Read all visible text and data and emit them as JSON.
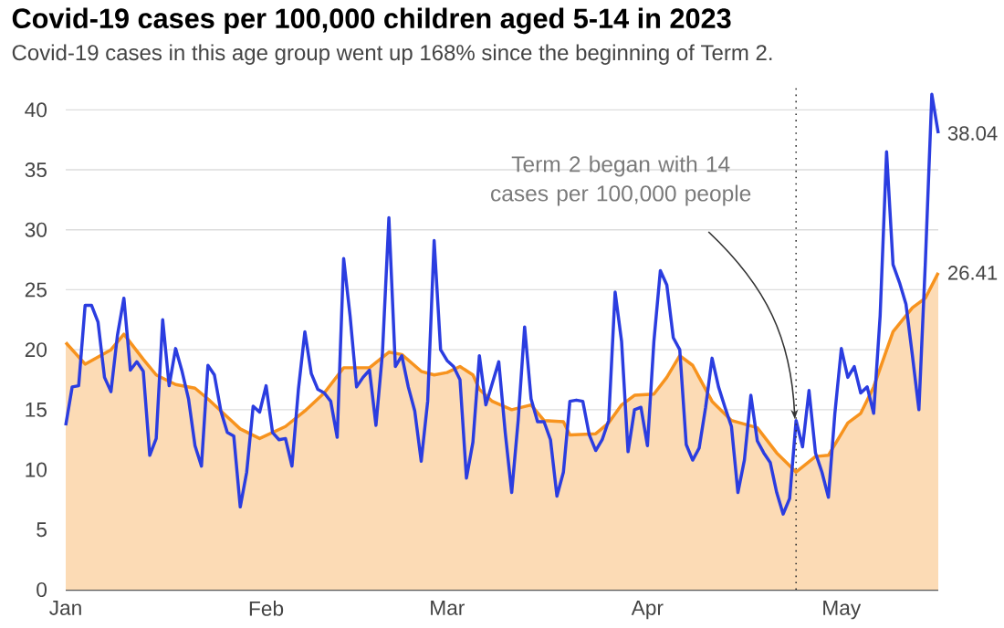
{
  "chart_data": {
    "type": "line",
    "title": "Covid-19 cases per 100,000 children aged 5-14 in 2023",
    "subtitle": "Covid-19 cases in this age group went up 168% since the beginning of Term 2.",
    "x": [
      "2023-01-01",
      "2023-01-02",
      "2023-01-03",
      "2023-01-04",
      "2023-01-05",
      "2023-01-06",
      "2023-01-07",
      "2023-01-08",
      "2023-01-09",
      "2023-01-10",
      "2023-01-11",
      "2023-01-12",
      "2023-01-13",
      "2023-01-14",
      "2023-01-15",
      "2023-01-16",
      "2023-01-17",
      "2023-01-18",
      "2023-01-19",
      "2023-01-20",
      "2023-01-21",
      "2023-01-22",
      "2023-01-23",
      "2023-01-24",
      "2023-01-25",
      "2023-01-26",
      "2023-01-27",
      "2023-01-28",
      "2023-01-29",
      "2023-01-30",
      "2023-01-31",
      "2023-02-01",
      "2023-02-02",
      "2023-02-03",
      "2023-02-04",
      "2023-02-05",
      "2023-02-06",
      "2023-02-07",
      "2023-02-08",
      "2023-02-09",
      "2023-02-10",
      "2023-02-11",
      "2023-02-12",
      "2023-02-13",
      "2023-02-14",
      "2023-02-15",
      "2023-02-16",
      "2023-02-17",
      "2023-02-18",
      "2023-02-19",
      "2023-02-20",
      "2023-02-21",
      "2023-02-22",
      "2023-02-23",
      "2023-02-24",
      "2023-02-25",
      "2023-02-26",
      "2023-02-27",
      "2023-02-28",
      "2023-03-01",
      "2023-03-02",
      "2023-03-03",
      "2023-03-04",
      "2023-03-05",
      "2023-03-06",
      "2023-03-07",
      "2023-03-08",
      "2023-03-09",
      "2023-03-10",
      "2023-03-11",
      "2023-03-12",
      "2023-03-13",
      "2023-03-14",
      "2023-03-15",
      "2023-03-16",
      "2023-03-17",
      "2023-03-18",
      "2023-03-19",
      "2023-03-20",
      "2023-03-21",
      "2023-03-22",
      "2023-03-23",
      "2023-03-24",
      "2023-03-25",
      "2023-03-26",
      "2023-03-27",
      "2023-03-28",
      "2023-03-29",
      "2023-03-30",
      "2023-03-31",
      "2023-04-01",
      "2023-04-02",
      "2023-04-03",
      "2023-04-04",
      "2023-04-05",
      "2023-04-06",
      "2023-04-07",
      "2023-04-08",
      "2023-04-09",
      "2023-04-10",
      "2023-04-11",
      "2023-04-12",
      "2023-04-13",
      "2023-04-14",
      "2023-04-15",
      "2023-04-16",
      "2023-04-17",
      "2023-04-18",
      "2023-04-19",
      "2023-04-20",
      "2023-04-21",
      "2023-04-22",
      "2023-04-23",
      "2023-04-24",
      "2023-04-25",
      "2023-04-26",
      "2023-04-27",
      "2023-04-28",
      "2023-04-29",
      "2023-04-30",
      "2023-05-01",
      "2023-05-02",
      "2023-05-03",
      "2023-05-04",
      "2023-05-05",
      "2023-05-06",
      "2023-05-07",
      "2023-05-08",
      "2023-05-09",
      "2023-05-10",
      "2023-05-11",
      "2023-05-12",
      "2023-05-13",
      "2023-05-14",
      "2023-05-15",
      "2023-05-16"
    ],
    "series": [
      {
        "type": "area",
        "color": "#f7931e",
        "x": [
          "2023-01-01",
          "2023-01-04",
          "2023-01-08",
          "2023-01-10",
          "2023-01-13",
          "2023-01-15",
          "2023-01-18",
          "2023-01-21",
          "2023-01-23",
          "2023-01-26",
          "2023-01-28",
          "2023-01-31",
          "2023-02-04",
          "2023-02-07",
          "2023-02-10",
          "2023-02-13",
          "2023-02-17",
          "2023-02-20",
          "2023-02-22",
          "2023-02-25",
          "2023-02-27",
          "2023-03-01",
          "2023-03-03",
          "2023-03-05",
          "2023-03-06",
          "2023-03-08",
          "2023-03-11",
          "2023-03-14",
          "2023-03-16",
          "2023-03-19",
          "2023-03-20",
          "2023-03-24",
          "2023-03-26",
          "2023-03-28",
          "2023-03-30",
          "2023-04-02",
          "2023-04-04",
          "2023-04-06",
          "2023-04-08",
          "2023-04-11",
          "2023-04-14",
          "2023-04-18",
          "2023-04-21",
          "2023-04-24",
          "2023-04-27",
          "2023-04-29",
          "2023-05-02",
          "2023-05-04",
          "2023-05-06",
          "2023-05-09",
          "2023-05-12",
          "2023-05-14",
          "2023-05-16"
        ],
        "values": [
          20.6,
          18.8,
          20.0,
          21.3,
          19.2,
          17.9,
          17.1,
          16.8,
          15.9,
          14.4,
          13.4,
          12.6,
          13.6,
          14.9,
          16.4,
          18.5,
          18.5,
          19.8,
          19.6,
          18.2,
          17.9,
          18.1,
          18.6,
          17.9,
          16.7,
          15.7,
          15.0,
          15.4,
          14.1,
          14.0,
          12.9,
          13.0,
          13.9,
          15.4,
          16.2,
          16.3,
          17.7,
          19.5,
          18.7,
          15.7,
          14.1,
          13.5,
          11.4,
          9.8,
          11.1,
          11.2,
          13.9,
          14.7,
          16.9,
          21.5,
          23.5,
          24.3,
          26.41
        ]
      },
      {
        "color": "#2b3de0",
        "values": [
          13.7,
          16.9,
          17.0,
          23.7,
          23.7,
          22.3,
          17.7,
          16.5,
          21.2,
          24.3,
          18.3,
          19.0,
          18.2,
          11.2,
          12.6,
          22.5,
          17.0,
          20.1,
          18.2,
          15.9,
          12.0,
          10.3,
          18.7,
          17.9,
          14.9,
          13.1,
          12.8,
          6.9,
          9.8,
          15.3,
          14.8,
          17.0,
          13.1,
          12.5,
          12.6,
          10.3,
          16.7,
          21.5,
          18.0,
          16.7,
          16.4,
          15.7,
          12.7,
          27.6,
          22.8,
          16.9,
          17.7,
          18.3,
          13.7,
          19.7,
          31.0,
          18.6,
          19.5,
          16.9,
          14.9,
          10.7,
          15.7,
          29.1,
          20.0,
          19.1,
          18.6,
          17.5,
          9.3,
          12.3,
          19.5,
          15.4,
          17.2,
          19.0,
          13.1,
          8.1,
          14.1,
          21.9,
          15.9,
          14.0,
          14.0,
          12.5,
          7.8,
          9.8,
          15.7,
          15.8,
          15.7,
          12.9,
          11.6,
          12.5,
          14.1,
          24.8,
          20.7,
          11.5,
          15.0,
          15.2,
          12.0,
          20.7,
          26.6,
          25.4,
          21.0,
          20.0,
          12.1,
          10.8,
          11.8,
          15.2,
          19.3,
          16.9,
          15.2,
          13.6,
          8.1,
          10.8,
          16.2,
          12.4,
          11.4,
          10.6,
          8.1,
          6.3,
          7.6,
          14.1,
          11.9,
          16.6,
          11.4,
          9.8,
          7.7,
          14.7,
          20.1,
          17.7,
          18.6,
          16.4,
          16.9,
          14.7,
          22.8,
          36.5,
          27.1,
          25.6,
          23.8,
          19.5,
          15.0,
          27.3,
          41.3,
          38.04
        ]
      }
    ],
    "xlim": [
      "2023-01-01",
      "2023-05-16"
    ],
    "xticks": [
      {
        "value": "2023-01-01",
        "label": "Jan"
      },
      {
        "value": "2023-02-01",
        "label": "Feb"
      },
      {
        "value": "2023-03-01",
        "label": "Mar"
      },
      {
        "value": "2023-04-01",
        "label": "Apr"
      },
      {
        "value": "2023-05-01",
        "label": "May"
      }
    ],
    "ylim": [
      0,
      42
    ],
    "yticks": [
      0,
      5,
      10,
      15,
      20,
      25,
      30,
      35,
      40
    ],
    "grid": "y",
    "ref_lines": [
      {
        "axis": "x",
        "value": "2023-04-24",
        "line_style": "dotted",
        "color": "#333333"
      }
    ],
    "annotations": [
      {
        "text": "Term 2 began with 14 cases per 100,000 people",
        "x": "2023-04-24",
        "y": 14
      },
      {
        "text": "38.04",
        "x": "2023-05-16",
        "y": 38.04
      },
      {
        "text": "26.41",
        "x": "2023-05-16",
        "y": 26.41
      }
    ]
  }
}
